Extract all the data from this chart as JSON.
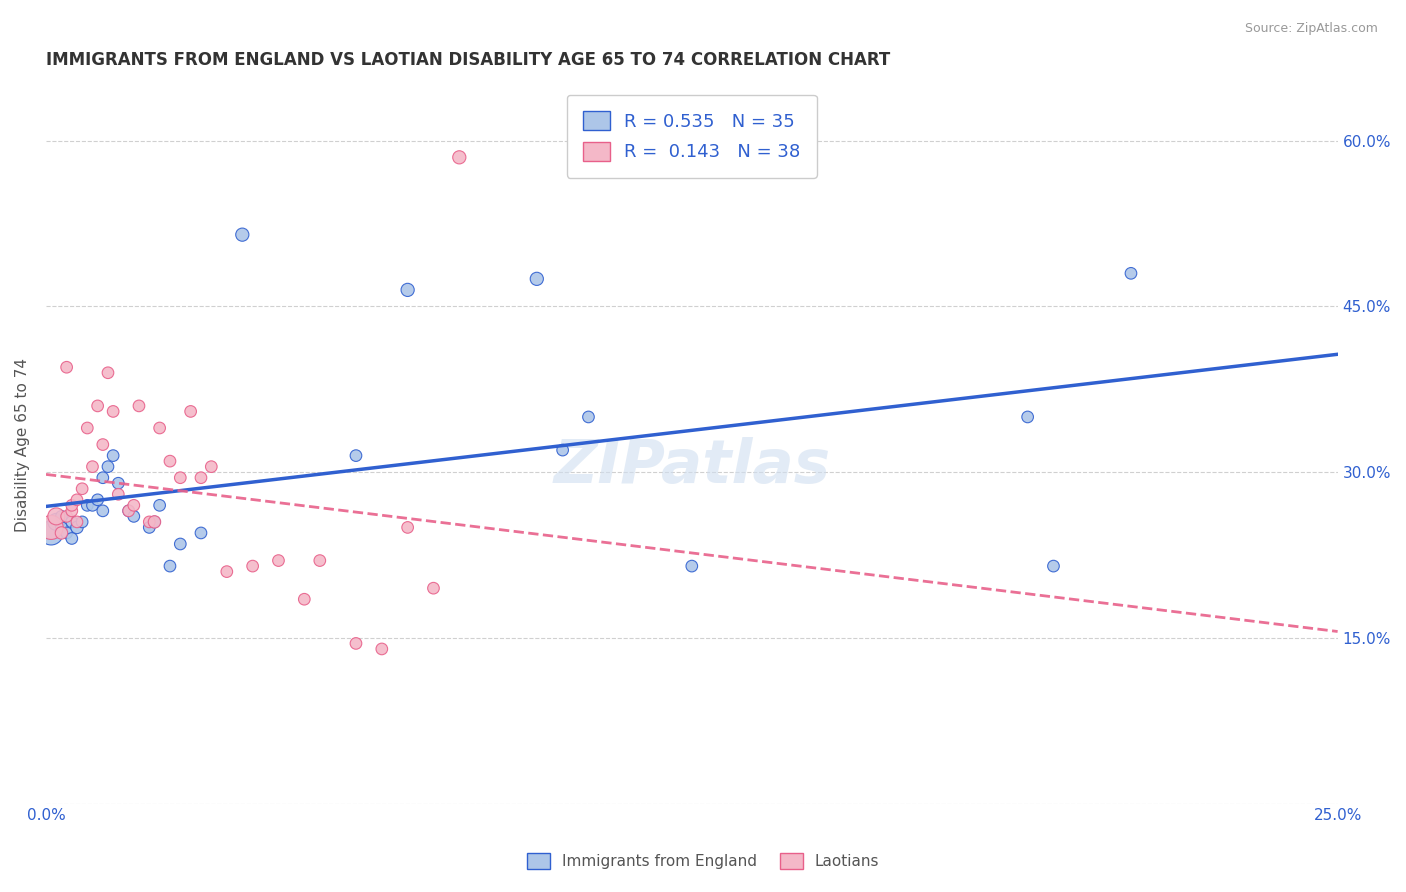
{
  "title": "IMMIGRANTS FROM ENGLAND VS LAOTIAN DISABILITY AGE 65 TO 74 CORRELATION CHART",
  "source": "Source: ZipAtlas.com",
  "ylabel": "Disability Age 65 to 74",
  "xlim": [
    0.0,
    0.25
  ],
  "ylim": [
    0.0,
    0.65
  ],
  "xtick_vals": [
    0.0,
    0.05,
    0.1,
    0.15,
    0.2,
    0.25
  ],
  "xticklabels": [
    "0.0%",
    "",
    "",
    "",
    "",
    "25.0%"
  ],
  "ytick_vals": [
    0.0,
    0.15,
    0.3,
    0.45,
    0.6
  ],
  "yticklabels_left": [
    "",
    "",
    "",
    "",
    ""
  ],
  "yticklabels_right": [
    "",
    "15.0%",
    "30.0%",
    "45.0%",
    "60.0%"
  ],
  "r_england": 0.535,
  "n_england": 35,
  "r_laotian": 0.143,
  "n_laotian": 38,
  "color_england": "#adc6e8",
  "color_laotian": "#f4b8c8",
  "line_color_england": "#3060d0",
  "line_color_laotian": "#e8608a",
  "watermark": "ZIPatlas",
  "england_x": [
    0.001,
    0.002,
    0.003,
    0.003,
    0.004,
    0.005,
    0.005,
    0.006,
    0.007,
    0.008,
    0.009,
    0.01,
    0.011,
    0.011,
    0.012,
    0.013,
    0.014,
    0.016,
    0.017,
    0.02,
    0.021,
    0.022,
    0.024,
    0.026,
    0.03,
    0.038,
    0.06,
    0.07,
    0.095,
    0.1,
    0.105,
    0.125,
    0.19,
    0.21,
    0.195
  ],
  "england_y": [
    0.245,
    0.255,
    0.25,
    0.26,
    0.245,
    0.255,
    0.24,
    0.25,
    0.255,
    0.27,
    0.27,
    0.275,
    0.265,
    0.295,
    0.305,
    0.315,
    0.29,
    0.265,
    0.26,
    0.25,
    0.255,
    0.27,
    0.215,
    0.235,
    0.245,
    0.515,
    0.315,
    0.465,
    0.475,
    0.32,
    0.35,
    0.215,
    0.35,
    0.48,
    0.215
  ],
  "laotian_x": [
    0.001,
    0.002,
    0.003,
    0.004,
    0.004,
    0.005,
    0.005,
    0.006,
    0.006,
    0.007,
    0.008,
    0.009,
    0.01,
    0.011,
    0.012,
    0.013,
    0.014,
    0.016,
    0.017,
    0.018,
    0.02,
    0.021,
    0.022,
    0.024,
    0.026,
    0.028,
    0.03,
    0.032,
    0.035,
    0.04,
    0.045,
    0.05,
    0.053,
    0.06,
    0.065,
    0.07,
    0.075,
    0.08
  ],
  "laotian_y": [
    0.25,
    0.26,
    0.245,
    0.26,
    0.395,
    0.265,
    0.27,
    0.255,
    0.275,
    0.285,
    0.34,
    0.305,
    0.36,
    0.325,
    0.39,
    0.355,
    0.28,
    0.265,
    0.27,
    0.36,
    0.255,
    0.255,
    0.34,
    0.31,
    0.295,
    0.355,
    0.295,
    0.305,
    0.21,
    0.215,
    0.22,
    0.185,
    0.22,
    0.145,
    0.14,
    0.25,
    0.195,
    0.585
  ],
  "england_sizes": [
    300,
    150,
    70,
    70,
    70,
    70,
    70,
    80,
    70,
    70,
    70,
    70,
    70,
    70,
    70,
    70,
    70,
    70,
    70,
    70,
    70,
    70,
    70,
    70,
    70,
    90,
    70,
    90,
    90,
    70,
    70,
    70,
    70,
    70,
    70
  ],
  "laotian_sizes": [
    300,
    150,
    80,
    70,
    70,
    70,
    70,
    70,
    70,
    70,
    70,
    70,
    70,
    70,
    70,
    70,
    70,
    70,
    70,
    70,
    70,
    80,
    70,
    70,
    70,
    70,
    70,
    70,
    70,
    70,
    70,
    70,
    70,
    70,
    70,
    70,
    70,
    90
  ]
}
